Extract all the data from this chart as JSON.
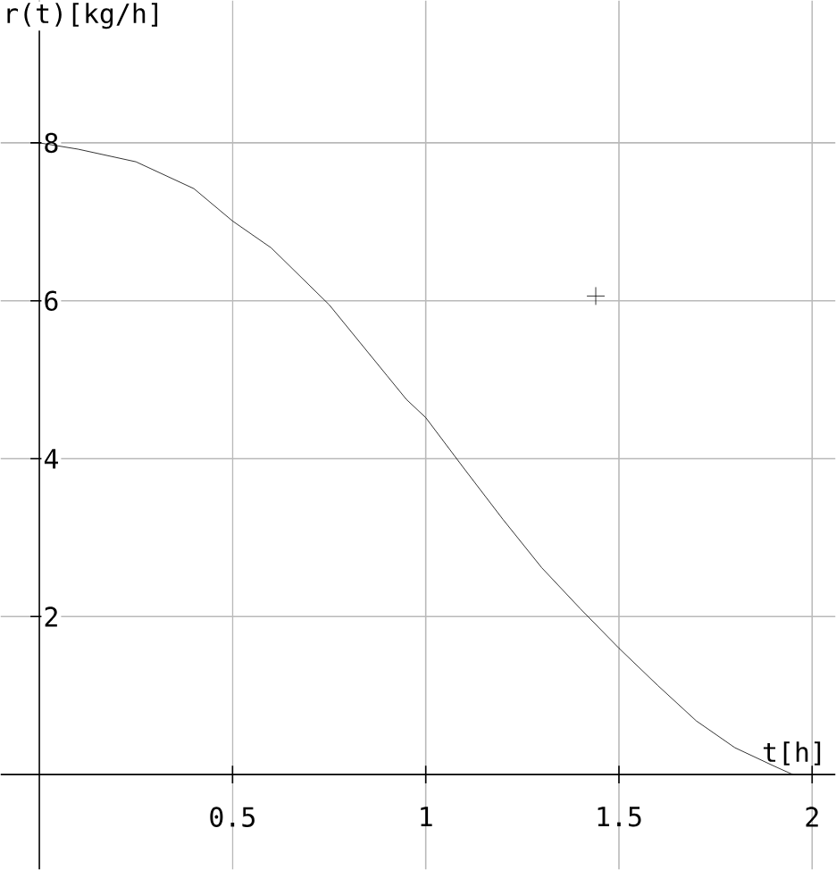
{
  "chart_data": {
    "type": "line",
    "xlabel": "t[h]",
    "ylabel": "r(t)[kg/h]",
    "xlim": [
      -0.1,
      2.06
    ],
    "ylim": [
      -1.2,
      9.8
    ],
    "xticks": [
      0.5,
      1,
      1.5,
      2
    ],
    "yticks": [
      2,
      4,
      6,
      8
    ],
    "grid": true,
    "marker": "none",
    "line_style": "solid",
    "series": [
      {
        "color": "#000000",
        "x": [
          0,
          0.1,
          0.25,
          0.4,
          0.5,
          0.6,
          0.75,
          0.9,
          0.95,
          1.0,
          1.1,
          1.2,
          1.3,
          1.4,
          1.5,
          1.6,
          1.7,
          1.8,
          1.9,
          1.95
        ],
        "values": [
          8,
          7.92,
          7.76,
          7.42,
          7.01,
          6.67,
          5.95,
          5.05,
          4.75,
          4.52,
          3.87,
          3.23,
          2.62,
          2.1,
          1.6,
          1.13,
          0.68,
          0.34,
          0.11,
          0
        ]
      },
      {
        "type": "scatter",
        "marker": "cross",
        "color": "#000000",
        "x": [
          1.44
        ],
        "values": [
          6.06
        ]
      }
    ]
  }
}
